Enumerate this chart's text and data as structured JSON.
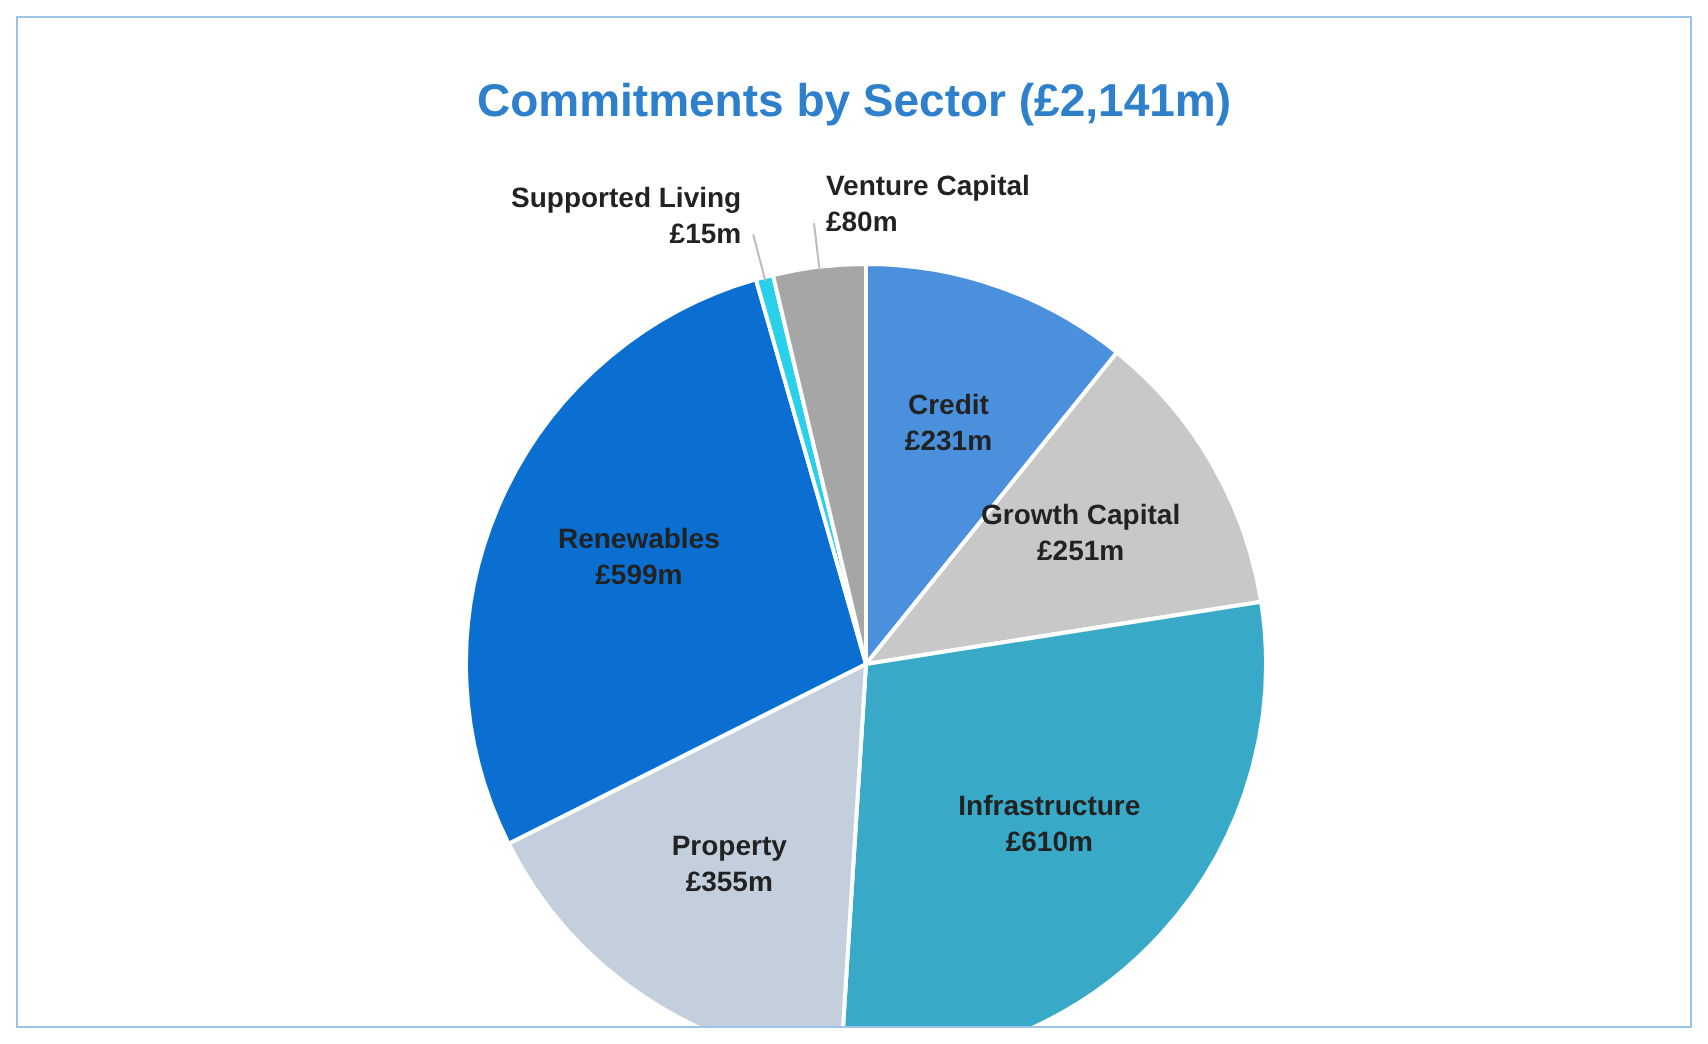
{
  "chart_data": {
    "type": "pie",
    "title": "Commitments by Sector (£2,141m)",
    "categories": [
      "Credit",
      "Growth Capital",
      "Infrastructure",
      "Property",
      "Renewables",
      "Supported Living",
      "Venture Capital"
    ],
    "values": [
      231,
      251,
      610,
      355,
      599,
      15,
      80
    ],
    "value_labels": [
      "£231m",
      "£251m",
      "£610m",
      "£355m",
      "£599m",
      "£15m",
      "£80m"
    ],
    "colors": [
      "#4a90dc",
      "#c8c8c8",
      "#38aac8",
      "#c3cfdc",
      "#0b6fd2",
      "#28d0ea",
      "#a6a6a6"
    ]
  }
}
